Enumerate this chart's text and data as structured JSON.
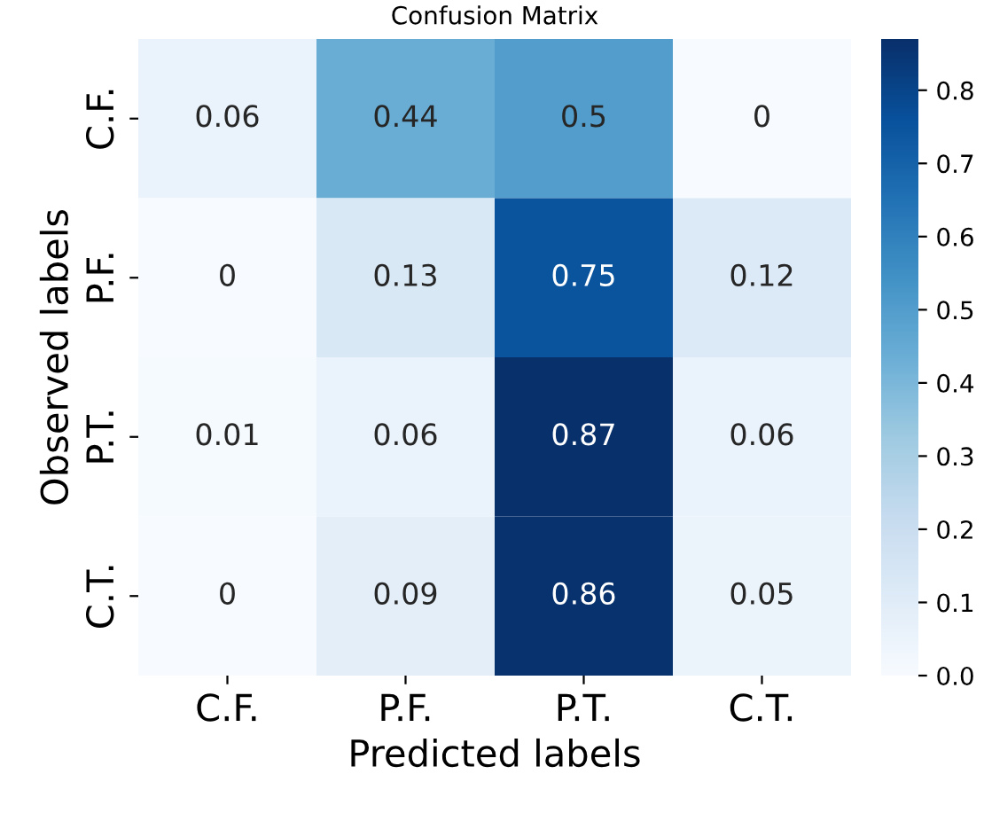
{
  "chart_data": {
    "type": "heatmap",
    "title": "Confusion Matrix",
    "xlabel": "Predicted labels",
    "ylabel": "Observed labels",
    "categories": [
      "C.F.",
      "P.F.",
      "P.T.",
      "C.T."
    ],
    "y_categories": [
      "C.F.",
      "P.F.",
      "P.T.",
      "C.T."
    ],
    "cells": [
      [
        0.06,
        0.44,
        0.5,
        0
      ],
      [
        0,
        0.13,
        0.75,
        0.12
      ],
      [
        0.01,
        0.06,
        0.87,
        0.06
      ],
      [
        0,
        0.09,
        0.86,
        0.05
      ]
    ],
    "data_labels": true,
    "clim": [
      0,
      0.87
    ],
    "cticks": [
      {
        "value": 0,
        "label": "0.0"
      },
      {
        "value": 0.1,
        "label": "0.1"
      },
      {
        "value": 0.2,
        "label": "0.2"
      },
      {
        "value": 0.3,
        "label": "0.3"
      },
      {
        "value": 0.4,
        "label": "0.4"
      },
      {
        "value": 0.5,
        "label": "0.5"
      },
      {
        "value": 0.6,
        "label": "0.6"
      },
      {
        "value": 0.7,
        "label": "0.7"
      },
      {
        "value": 0.8,
        "label": "0.8"
      }
    ]
  }
}
